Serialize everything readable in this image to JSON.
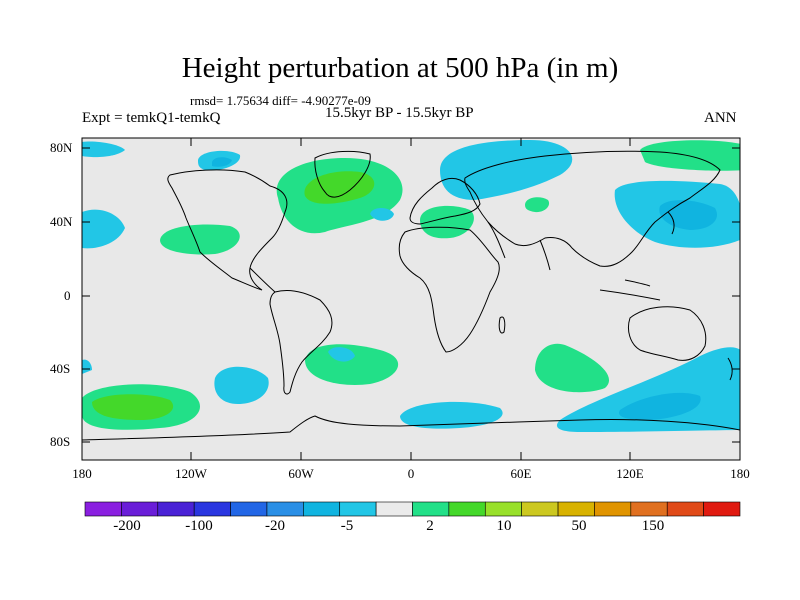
{
  "title": "Height perturbation at 500 hPa (in m)",
  "stats": "rmsd= 1.75634 diff= -4.90277e-09",
  "expt": "Expt = temkQ1-temkQ",
  "period": "15.5kyr BP - 15.5kyr BP",
  "season": "ANN",
  "map": {
    "lat_labels": [
      "80N",
      "40N",
      "0",
      "40S",
      "80S"
    ],
    "lon_labels": [
      "180",
      "120W",
      "60W",
      "0",
      "60E",
      "120E",
      "180"
    ],
    "background": "#e8e8e8"
  },
  "colorbar": {
    "labels": [
      "-200",
      "-100",
      "-20",
      "-5",
      "2",
      "10",
      "50",
      "150"
    ],
    "colors": [
      "#8a1fe0",
      "#6a1ed8",
      "#4a22d6",
      "#2a36e0",
      "#2266e6",
      "#2a8fe6",
      "#10b4e0",
      "#22c6e6",
      "#ebebeb",
      "#22e088",
      "#44d82a",
      "#98e02a",
      "#ccc820",
      "#d8b200",
      "#e09400",
      "#e07020",
      "#e04a18",
      "#e01a10"
    ]
  }
}
